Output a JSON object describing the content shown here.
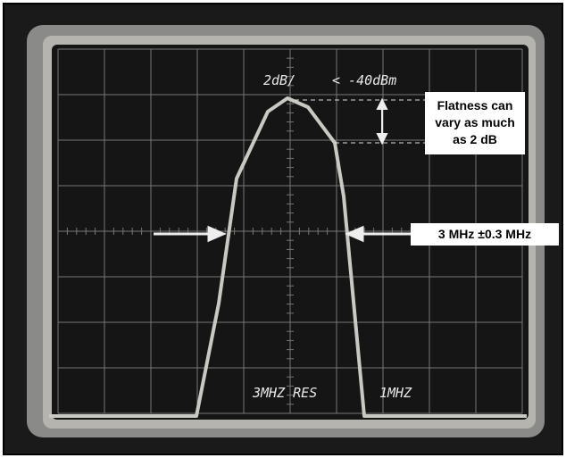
{
  "screen": {
    "scale_label": "2dB/",
    "reference_label": "< -40dBm",
    "resolution_label": "3MHZ RES",
    "span_label": "1MHZ"
  },
  "annotations": {
    "flatness": [
      "Flatness can",
      "vary as much",
      "as 2 dB"
    ],
    "bandwidth": "3 MHz ±0.3 MHz"
  }
}
